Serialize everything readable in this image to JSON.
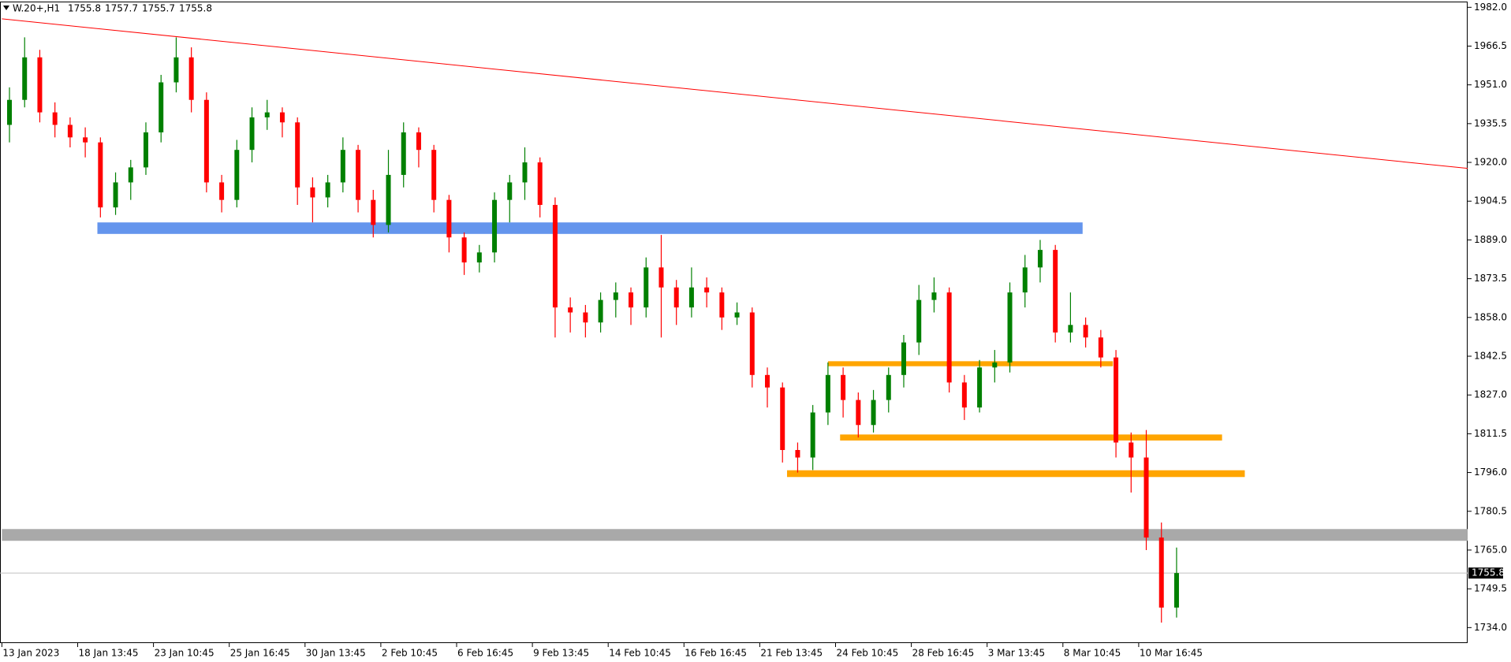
{
  "chart_data": {
    "type": "candlestick",
    "symbol": "W.20+,H1",
    "header_ohlc": [
      1755.8,
      1757.7,
      1755.7,
      1755.8
    ],
    "categories": [
      "13 Jan 2023",
      null,
      null,
      null,
      null,
      "18 Jan 13:45",
      null,
      null,
      null,
      null,
      "23 Jan 10:45",
      null,
      null,
      null,
      null,
      "25 Jan 16:45",
      null,
      null,
      null,
      null,
      "30 Jan 13:45",
      null,
      null,
      null,
      null,
      "2 Feb 10:45",
      null,
      null,
      null,
      null,
      "6 Feb 16:45",
      null,
      null,
      null,
      null,
      "9 Feb 13:45",
      null,
      null,
      null,
      null,
      "14 Feb 10:45",
      null,
      null,
      null,
      null,
      "16 Feb 16:45",
      null,
      null,
      null,
      null,
      "21 Feb 13:45",
      null,
      null,
      null,
      null,
      "24 Feb 10:45",
      null,
      null,
      null,
      null,
      "28 Feb 16:45",
      null,
      null,
      null,
      null,
      "3 Mar 13:45",
      null,
      null,
      null,
      null,
      "8 Mar 10:45",
      null,
      null,
      null,
      null,
      "10 Mar 16:45",
      null,
      null
    ],
    "open": [
      1935,
      1945,
      1962,
      1940,
      1935,
      1930,
      1928,
      1902,
      1912,
      1918,
      1932,
      1952,
      1962,
      1945,
      1912,
      1905,
      1925,
      1938,
      1940,
      1936,
      1910,
      1906,
      1912,
      1925,
      1905,
      1895,
      1915,
      1932,
      1925,
      1905,
      1890,
      1880,
      1884,
      1905,
      1912,
      1920,
      1903,
      1862,
      1860,
      1856,
      1865,
      1868,
      1862,
      1878,
      1870,
      1862,
      1870,
      1868,
      1858,
      1860,
      1835,
      1830,
      1805,
      1802,
      1820,
      1835,
      1825,
      1815,
      1825,
      1835,
      1848,
      1865,
      1868,
      1832,
      1822,
      1838,
      1840,
      1868,
      1878,
      1885,
      1852,
      1855,
      1850,
      1842,
      1808,
      1802,
      1770,
      1742
    ],
    "high": [
      1950,
      1970,
      1965,
      1944,
      1938,
      1934,
      1930,
      1916,
      1921,
      1936,
      1955,
      1970,
      1966,
      1948,
      1915,
      1929,
      1942,
      1945,
      1942,
      1938,
      1914,
      1915,
      1930,
      1927,
      1909,
      1925,
      1936,
      1934,
      1927,
      1907,
      1892,
      1887,
      1908,
      1915,
      1926,
      1922,
      1906,
      1866,
      1863,
      1868,
      1872,
      1870,
      1882,
      1891,
      1873,
      1878,
      1874,
      1870,
      1864,
      1862,
      1838,
      1832,
      1808,
      1823,
      1840,
      1838,
      1828,
      1829,
      1838,
      1851,
      1871,
      1874,
      1870,
      1835,
      1841,
      1845,
      1872,
      1883,
      1889,
      1887,
      1868,
      1858,
      1853,
      1845,
      1812,
      1813,
      1776,
      1766
    ],
    "low": [
      1928,
      1942,
      1936,
      1930,
      1926,
      1922,
      1898,
      1899,
      1905,
      1915,
      1928,
      1948,
      1940,
      1908,
      1900,
      1902,
      1920,
      1933,
      1930,
      1903,
      1896,
      1902,
      1908,
      1900,
      1890,
      1892,
      1910,
      1918,
      1900,
      1884,
      1875,
      1876,
      1880,
      1896,
      1905,
      1898,
      1850,
      1852,
      1850,
      1852,
      1858,
      1855,
      1858,
      1850,
      1855,
      1858,
      1862,
      1853,
      1855,
      1830,
      1822,
      1800,
      1796,
      1797,
      1815,
      1818,
      1810,
      1812,
      1820,
      1830,
      1843,
      1860,
      1828,
      1817,
      1820,
      1832,
      1836,
      1862,
      1872,
      1848,
      1848,
      1846,
      1838,
      1802,
      1788,
      1765,
      1736,
      1738
    ],
    "close": [
      1945,
      1962,
      1940,
      1935,
      1930,
      1928,
      1902,
      1912,
      1918,
      1932,
      1952,
      1962,
      1945,
      1912,
      1905,
      1925,
      1938,
      1940,
      1936,
      1910,
      1906,
      1912,
      1925,
      1905,
      1895,
      1915,
      1932,
      1925,
      1905,
      1890,
      1880,
      1884,
      1905,
      1912,
      1920,
      1903,
      1862,
      1860,
      1856,
      1865,
      1868,
      1862,
      1878,
      1870,
      1862,
      1870,
      1868,
      1858,
      1860,
      1835,
      1830,
      1805,
      1802,
      1820,
      1835,
      1825,
      1815,
      1825,
      1835,
      1848,
      1865,
      1868,
      1832,
      1822,
      1838,
      1840,
      1868,
      1878,
      1885,
      1852,
      1855,
      1850,
      1842,
      1808,
      1802,
      1770,
      1742,
      1755.8
    ],
    "up_color": "#008000",
    "down_color": "#ff0000",
    "ylim": [
      1727.8,
      1984.3
    ],
    "yticks": [
      {
        "value": 1982,
        "label": "1982.0"
      },
      1966.5,
      {
        "value": 1951,
        "label": "1951.0"
      },
      1935.5,
      {
        "value": 1920,
        "label": "1920.0"
      },
      1904.5,
      {
        "value": 1889,
        "label": "1889.0"
      },
      1873.5,
      {
        "value": 1858,
        "label": "1858.0"
      },
      1842.5,
      {
        "value": 1827,
        "label": "1827.0"
      },
      1811.5,
      {
        "value": 1796,
        "label": "1796.0"
      },
      1780.5,
      {
        "value": 1765,
        "label": "1765.0"
      },
      1749.5,
      {
        "value": 1734,
        "label": "1734.0"
      }
    ],
    "trendline": {
      "color": "#ff0000",
      "x": [
        0,
        96.7
      ],
      "y": [
        1977.4,
        1917.6
      ]
    },
    "zones": [
      {
        "color": "#6495ed",
        "x": [
          6.3,
          71.3
        ],
        "y": [
          1891.4,
          1896.0
        ]
      },
      {
        "color": "#ffa500",
        "x": [
          54.5,
          73.3
        ],
        "y": [
          1838.5,
          1840.5
        ]
      },
      {
        "color": "#ffa500",
        "x": [
          55.3,
          80.5
        ],
        "y": [
          1808.8,
          1811.2
        ]
      },
      {
        "color": "#ffa500",
        "x": [
          51.8,
          82.0
        ],
        "y": [
          1794.2,
          1796.9
        ]
      },
      {
        "color": "#a9a9a9",
        "x": [
          0,
          96.7
        ],
        "y": [
          1768.7,
          1773.4
        ]
      }
    ],
    "price_line_color": "#c0c0c0"
  }
}
